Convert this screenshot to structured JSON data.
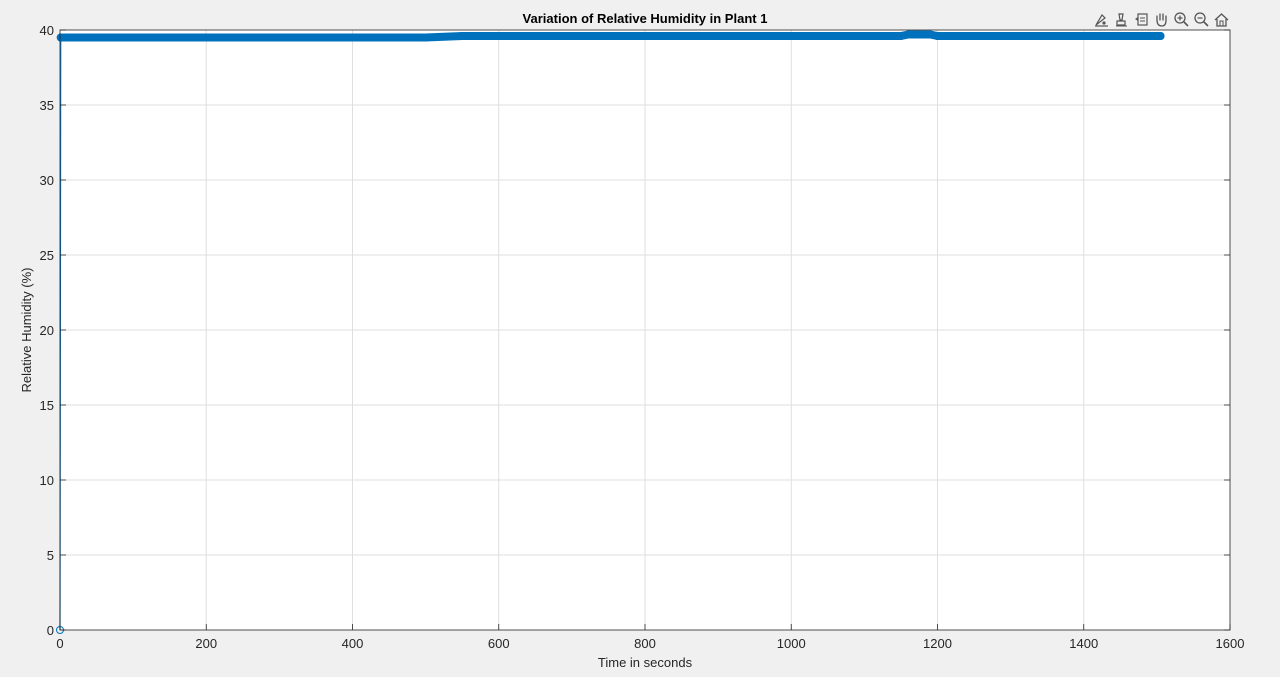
{
  "toolbar": {
    "icons": [
      "data-tips-icon",
      "brush-icon",
      "restore-view-icon",
      "pan-icon",
      "zoom-in-icon",
      "zoom-out-icon",
      "home-icon"
    ]
  },
  "chart_data": {
    "type": "line",
    "title": "Variation of Relative Humidity in Plant 1",
    "xlabel": "Time in seconds",
    "ylabel": "Relative Humidity (%)",
    "xlim": [
      0,
      1600
    ],
    "ylim": [
      0,
      40
    ],
    "xticks": [
      0,
      200,
      400,
      600,
      800,
      1000,
      1200,
      1400,
      1600
    ],
    "yticks": [
      0,
      5,
      10,
      15,
      20,
      25,
      30,
      35,
      40
    ],
    "grid": true,
    "marker": "o",
    "color": "#0072bd",
    "series": [
      {
        "x": [
          0,
          1,
          25,
          50,
          75,
          100,
          150,
          200,
          250,
          300,
          350,
          400,
          450,
          480,
          500,
          550,
          600,
          650,
          700,
          750,
          800,
          850,
          900,
          950,
          1000,
          1050,
          1100,
          1150,
          1160,
          1175,
          1190,
          1200,
          1250,
          1300,
          1350,
          1400,
          1450,
          1500,
          1505
        ],
        "y": [
          0,
          39.5,
          39.5,
          39.5,
          39.5,
          39.5,
          39.5,
          39.5,
          39.5,
          39.5,
          39.5,
          39.5,
          39.5,
          39.5,
          39.5,
          39.6,
          39.6,
          39.6,
          39.6,
          39.6,
          39.6,
          39.6,
          39.6,
          39.6,
          39.6,
          39.6,
          39.6,
          39.6,
          39.7,
          39.7,
          39.7,
          39.6,
          39.6,
          39.6,
          39.6,
          39.6,
          39.6,
          39.6,
          39.6
        ]
      }
    ]
  }
}
